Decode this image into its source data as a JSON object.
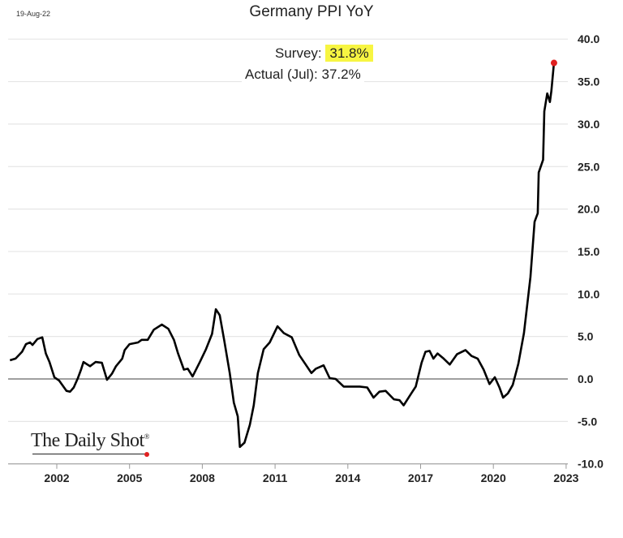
{
  "date_stamp": "19-Aug-22",
  "annotation": {
    "survey_label": "Survey:",
    "survey_value": "31.8%",
    "actual_label": "Actual (Jul):",
    "actual_value": "37.2%",
    "highlight_color": "#f7f542"
  },
  "logo": {
    "text": "The Daily Shot",
    "mark": "®"
  },
  "chart_data": {
    "type": "line",
    "title": "Germany PPI YoY",
    "xlabel": "",
    "ylabel": "",
    "xlim": [
      2000.0,
      2023.1
    ],
    "ylim": [
      -10,
      40
    ],
    "x_ticks": [
      2002,
      2005,
      2008,
      2011,
      2014,
      2017,
      2020,
      2023
    ],
    "y_ticks": [
      "40.0",
      "35.0",
      "30.0",
      "25.0",
      "20.0",
      "15.0",
      "10.0",
      "5.0",
      "0.0",
      "-5.0",
      "-10.0"
    ],
    "grid": true,
    "y_axis_side": "right",
    "line_color": "#000000",
    "endpoint_color": "#e02020",
    "endpoint": {
      "x": 2022.5,
      "y": 37.2
    },
    "series": [
      {
        "x": [
          2000.07,
          2000.3,
          2000.57,
          2000.73,
          2000.9,
          2001.0,
          2001.2,
          2001.4,
          2001.55,
          2001.7,
          2001.9,
          2002.1,
          2002.4,
          2002.55,
          2002.7,
          2002.87,
          2003.0,
          2003.1,
          2003.37,
          2003.6,
          2003.86,
          2004.07,
          2004.27,
          2004.44,
          2004.7,
          2004.8,
          2005.0,
          2005.35,
          2005.5,
          2005.75,
          2006.0,
          2006.33,
          2006.6,
          2006.83,
          2007.0,
          2007.24,
          2007.4,
          2007.6,
          2007.9,
          2008.15,
          2008.4,
          2008.56,
          2008.72,
          2008.9,
          2009.13,
          2009.3,
          2009.46,
          2009.55,
          2009.74,
          2009.96,
          2010.12,
          2010.29,
          2010.53,
          2010.78,
          2011.1,
          2011.36,
          2011.69,
          2012.0,
          2012.26,
          2012.5,
          2012.68,
          2013.0,
          2013.25,
          2013.5,
          2013.83,
          2014.16,
          2014.49,
          2014.8,
          2015.06,
          2015.3,
          2015.56,
          2015.9,
          2016.13,
          2016.3,
          2016.55,
          2016.8,
          2017.04,
          2017.2,
          2017.37,
          2017.53,
          2017.7,
          2017.95,
          2018.2,
          2018.5,
          2018.85,
          2019.1,
          2019.35,
          2019.6,
          2019.84,
          2020.06,
          2020.25,
          2020.4,
          2020.6,
          2020.8,
          2021.03,
          2021.26,
          2021.53,
          2021.7,
          2021.83,
          2021.87,
          2022.05,
          2022.1,
          2022.22,
          2022.33,
          2022.39,
          2022.5
        ],
        "y": [
          2.2,
          2.4,
          3.2,
          4.1,
          4.3,
          4.0,
          4.7,
          4.9,
          3.0,
          2.0,
          0.2,
          -0.2,
          -1.4,
          -1.5,
          -1.0,
          0.1,
          1.1,
          2.0,
          1.5,
          2.0,
          1.9,
          -0.1,
          0.6,
          1.5,
          2.4,
          3.4,
          4.1,
          4.3,
          4.6,
          4.6,
          5.8,
          6.4,
          5.9,
          4.6,
          3.0,
          1.1,
          1.2,
          0.3,
          2.0,
          3.5,
          5.3,
          8.2,
          7.5,
          4.6,
          0.7,
          -2.8,
          -4.4,
          -8.0,
          -7.5,
          -5.4,
          -3.1,
          0.7,
          3.5,
          4.3,
          6.2,
          5.4,
          4.9,
          2.8,
          1.7,
          0.7,
          1.2,
          1.6,
          0.1,
          0.0,
          -0.9,
          -0.9,
          -0.9,
          -1.0,
          -2.2,
          -1.5,
          -1.4,
          -2.4,
          -2.5,
          -3.1,
          -2.0,
          -0.9,
          1.9,
          3.2,
          3.3,
          2.4,
          3.0,
          2.4,
          1.7,
          2.9,
          3.4,
          2.7,
          2.4,
          1.1,
          -0.6,
          0.2,
          -1.0,
          -2.2,
          -1.7,
          -0.7,
          1.8,
          5.4,
          12.0,
          18.5,
          19.5,
          24.3,
          25.8,
          31.5,
          33.6,
          32.6,
          33.9,
          37.2
        ]
      }
    ]
  }
}
